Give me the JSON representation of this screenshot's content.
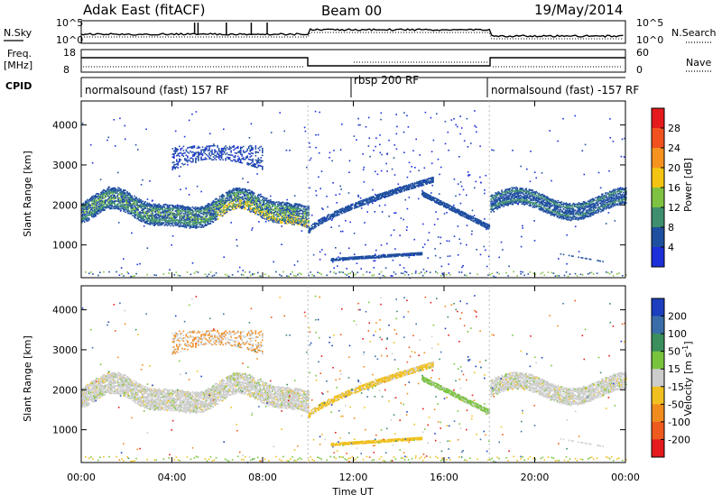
{
  "header": {
    "station": "Adak East (fitACF)",
    "beam": "Beam 00",
    "date": "19/May/2014"
  },
  "left_labels": {
    "nsky": "N.Sky",
    "freq_line1": "Freq.",
    "freq_line2": "[MHz]",
    "cpid": "CPID"
  },
  "right_labels": {
    "nsearch": "N.Search",
    "nave": "Nave"
  },
  "noise_axis": {
    "left_ticks": [
      "10^5",
      "10^0"
    ],
    "right_ticks": [
      "10^5",
      "10^0"
    ]
  },
  "freq_axis": {
    "left_ticks": [
      "18",
      "8"
    ],
    "right_ticks": [
      "60",
      "0"
    ]
  },
  "cpid_segments": [
    {
      "label": "normalsound (fast) 157 RF",
      "start_hour": 0,
      "end_hour": 10
    },
    {
      "label": "rbsp 200 RF",
      "start_hour": 10,
      "end_hour": 18
    },
    {
      "label": "normalsound (fast) -157 RF",
      "start_hour": 18,
      "end_hour": 24
    }
  ],
  "colorbar_power": {
    "label": "Power [dB]",
    "ticks": [
      "28",
      "24",
      "20",
      "16",
      "12",
      "8",
      "4"
    ],
    "colors": [
      "#e41a1c",
      "#f0511f",
      "#f6921e",
      "#f3c411",
      "#7fc241",
      "#3f8f6e",
      "#1f4fa0",
      "#1d2fd9"
    ]
  },
  "colorbar_velocity": {
    "label_main": "Velocity [m s",
    "label_sup": "-1",
    "label_end": "]",
    "ticks": [
      "200",
      "100",
      "50",
      "15",
      "-15",
      "-50",
      "-100",
      "-200"
    ],
    "colors": [
      "#1d3fbf",
      "#3b6ea8",
      "#3a8f5c",
      "#78c43c",
      "#cccccc",
      "#f0c020",
      "#f08c1e",
      "#ef5a1e",
      "#e41a1c"
    ]
  },
  "chart_data": [
    {
      "type": "heatmap",
      "title": "Power",
      "xlabel": "Time UT",
      "ylabel": "Slant Range [km]",
      "x_ticks": [
        "00:00",
        "04:00",
        "08:00",
        "12:00",
        "16:00",
        "20:00",
        "00:00"
      ],
      "y_ticks": [
        "1000",
        "2000",
        "3000",
        "4000"
      ],
      "xlim_hours": [
        0,
        24
      ],
      "ylim_km": [
        180,
        4600
      ],
      "colorbar_range_db": [
        0,
        30
      ],
      "features": [
        {
          "name": "main_band",
          "time_range_hours": [
            0,
            10
          ],
          "range_km": [
            1600,
            2350
          ],
          "power_db": "4-20"
        },
        {
          "name": "upper_patch",
          "time_range_hours": [
            4,
            8
          ],
          "range_km": [
            2900,
            3500
          ],
          "power_db": "4-8"
        },
        {
          "name": "rising_trace",
          "time_range_hours": [
            10,
            15.5
          ],
          "range_km": [
            1300,
            2700
          ],
          "power_db": "4-8"
        },
        {
          "name": "descending_trace",
          "time_range_hours": [
            15,
            18
          ],
          "range_km": [
            1450,
            2300
          ],
          "power_db": "4-8"
        },
        {
          "name": "late_band",
          "time_range_hours": [
            18,
            24
          ],
          "range_km": [
            1700,
            2550
          ],
          "power_db": "4-12"
        },
        {
          "name": "low_streak",
          "time_range_hours": [
            11,
            15
          ],
          "range_km": [
            600,
            800
          ],
          "power_db": "4-8"
        }
      ]
    },
    {
      "type": "heatmap",
      "title": "Velocity",
      "xlabel": "Time UT",
      "ylabel": "Slant Range [km]",
      "x_ticks": [
        "00:00",
        "04:00",
        "08:00",
        "12:00",
        "16:00",
        "20:00",
        "00:00"
      ],
      "y_ticks": [
        "1000",
        "2000",
        "3000",
        "4000"
      ],
      "xlim_hours": [
        0,
        24
      ],
      "ylim_km": [
        180,
        4600
      ],
      "colorbar_range_ms": [
        -200,
        200
      ],
      "features": [
        {
          "name": "main_band",
          "time_range_hours": [
            0,
            10
          ],
          "range_km": [
            1600,
            2350
          ],
          "velocity_ms": "-15 to 15"
        },
        {
          "name": "rising_trace",
          "time_range_hours": [
            10,
            15.5
          ],
          "range_km": [
            1300,
            2700
          ],
          "velocity_ms": "-50 to -15"
        },
        {
          "name": "descending_trace",
          "time_range_hours": [
            15,
            18
          ],
          "range_km": [
            1450,
            2300
          ],
          "velocity_ms": "15 to 50"
        },
        {
          "name": "low_streak",
          "time_range_hours": [
            11,
            15
          ],
          "range_km": [
            600,
            800
          ],
          "velocity_ms": "-50 to -15"
        }
      ]
    }
  ]
}
